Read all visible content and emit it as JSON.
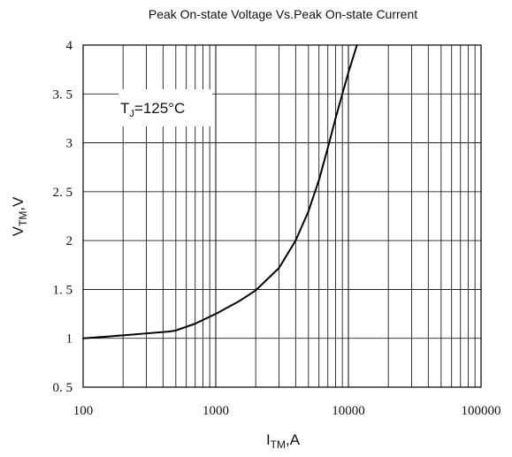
{
  "chart_data": {
    "type": "line",
    "title": "Peak On-state Voltage Vs.Peak On-state Current",
    "xlabel_main": "I",
    "xlabel_sub": "TM",
    "xlabel_rest": ",A",
    "ylabel_main": "V",
    "ylabel_sub": "TM",
    "ylabel_rest": ",V",
    "x_scale": "log",
    "xlim": [
      100,
      100000
    ],
    "ylim": [
      0.5,
      4
    ],
    "x_tick_labels": [
      "100",
      "1000",
      "10000",
      "100000"
    ],
    "y_tick_labels": [
      "0. 5",
      "1",
      "1. 5",
      "2",
      "2. 5",
      "3",
      "3. 5",
      "4"
    ],
    "grid": true,
    "annotation": {
      "main": "T",
      "sub": "J",
      "rest": "=125°C"
    },
    "series": [
      {
        "color": "#000000",
        "x": [
          100,
          200,
          300,
          450,
          500,
          700,
          1000,
          1500,
          2000,
          3000,
          4000,
          5000,
          6000,
          7000,
          8000,
          9000,
          10000,
          11000,
          11600
        ],
        "y": [
          1.0,
          1.03,
          1.05,
          1.07,
          1.08,
          1.15,
          1.25,
          1.38,
          1.49,
          1.72,
          2.0,
          2.3,
          2.62,
          2.95,
          3.25,
          3.5,
          3.72,
          3.9,
          4.0
        ]
      }
    ]
  }
}
